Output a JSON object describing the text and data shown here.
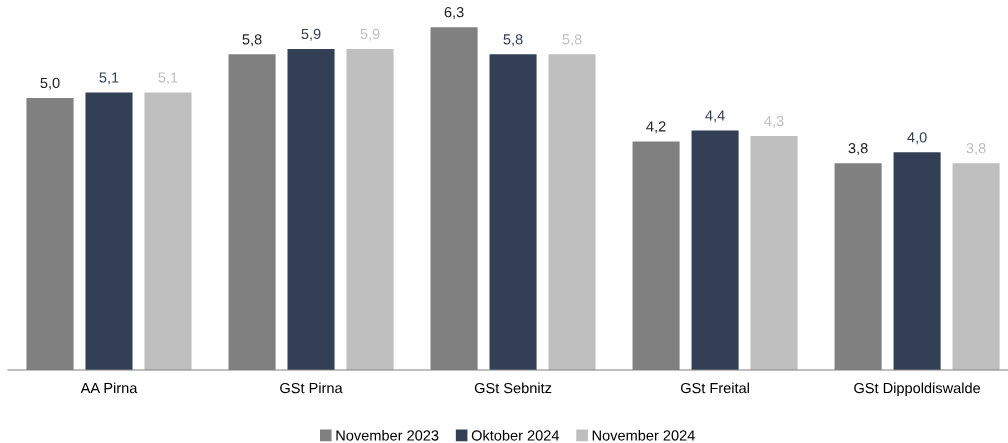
{
  "chart_data": {
    "type": "bar",
    "categories": [
      "AA Pirna",
      "GSt Pirna",
      "GSt Sebnitz",
      "GSt Freital",
      "GSt Dippoldiswalde"
    ],
    "series": [
      {
        "name": "November 2023",
        "color": "#808080",
        "values": [
          5.0,
          5.8,
          6.3,
          4.2,
          3.8
        ],
        "value_labels": [
          "5,0",
          "5,8",
          "6,3",
          "4,2",
          "3,8"
        ]
      },
      {
        "name": "Oktober 2024",
        "color": "#333f55",
        "values": [
          5.1,
          5.9,
          5.8,
          4.4,
          4.0
        ],
        "value_labels": [
          "5,1",
          "5,9",
          "5,8",
          "4,4",
          "4,0"
        ]
      },
      {
        "name": "November 2024",
        "color": "#bfbfbf",
        "values": [
          5.1,
          5.9,
          5.8,
          4.3,
          3.8
        ],
        "value_labels": [
          "5,1",
          "5,9",
          "5,8",
          "4,3",
          "3,8"
        ]
      }
    ],
    "tick_labels": "x",
    "grid": false,
    "legend": "bottom"
  }
}
